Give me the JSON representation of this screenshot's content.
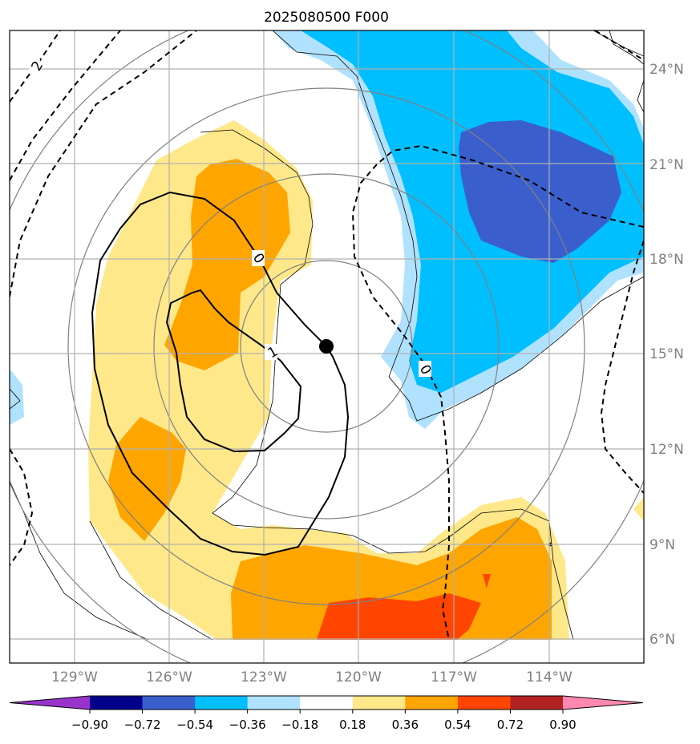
{
  "title": "2025080500 F000",
  "lat_labels": [
    "24°N",
    "21°N",
    "18°N",
    "15°N",
    "12°N",
    "9°N",
    "6°N"
  ],
  "lon_labels": [
    "129°W",
    "126°W",
    "123°W",
    "120°W",
    "117°W",
    "114°W"
  ],
  "contour_labels": [
    "2",
    "0",
    "1",
    "0"
  ],
  "colorbar": {
    "ticks": [
      "−0.90",
      "−0.72",
      "−0.54",
      "−0.36",
      "−0.18",
      "0.18",
      "0.36",
      "0.54",
      "0.72",
      "0.90"
    ],
    "colors": [
      "#9933cc",
      "#00008b",
      "#3a5fcd",
      "#00bfff",
      "#b0e2ff",
      "#ffffff",
      "#ffe88a",
      "#ffa500",
      "#ff4500",
      "#b22222",
      "#ff88b0"
    ]
  },
  "colors": {
    "grid": "#b0b0b0",
    "ring": "#808080",
    "axis_label": "#808080",
    "contour": "#000000"
  }
}
